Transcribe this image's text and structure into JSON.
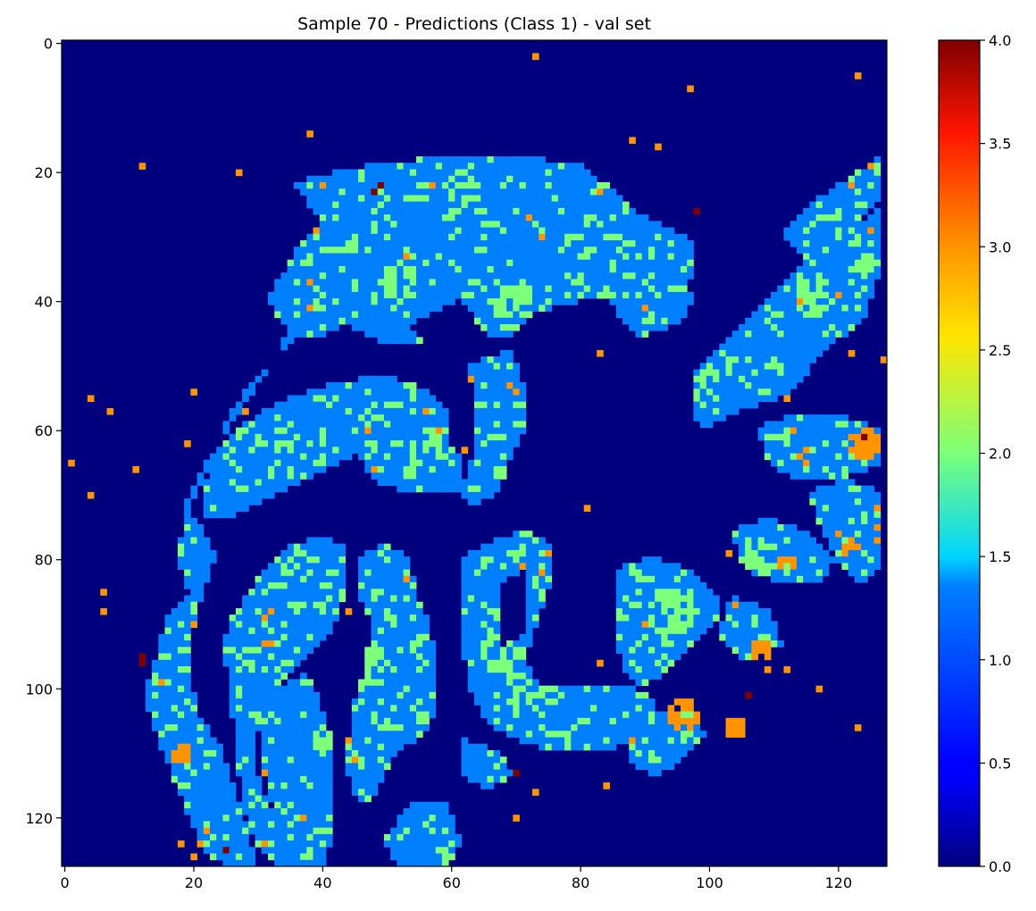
{
  "chart_data": {
    "type": "heatmap",
    "title": "Sample 70 - Predictions (Class 1) - val set",
    "colormap": "jet",
    "grid": false,
    "image_shape": [
      128,
      128
    ],
    "xlim": [
      -0.5,
      127.5
    ],
    "ylim": [
      127.5,
      -0.5
    ],
    "x_ticks": [
      0,
      20,
      40,
      60,
      80,
      100,
      120
    ],
    "y_ticks": [
      0,
      20,
      40,
      60,
      80,
      100,
      120
    ],
    "colorbar": {
      "range": [
        0.0,
        4.0
      ],
      "ticks": [
        "0.0",
        "0.5",
        "1.0",
        "1.5",
        "2.0",
        "2.5",
        "3.0",
        "3.5",
        "4.0"
      ]
    },
    "class_colors": {
      "0": "#00007f",
      "1": "#0080ff",
      "2": "#7cff79",
      "3": "#ff9400",
      "4": "#7f0000"
    }
  }
}
